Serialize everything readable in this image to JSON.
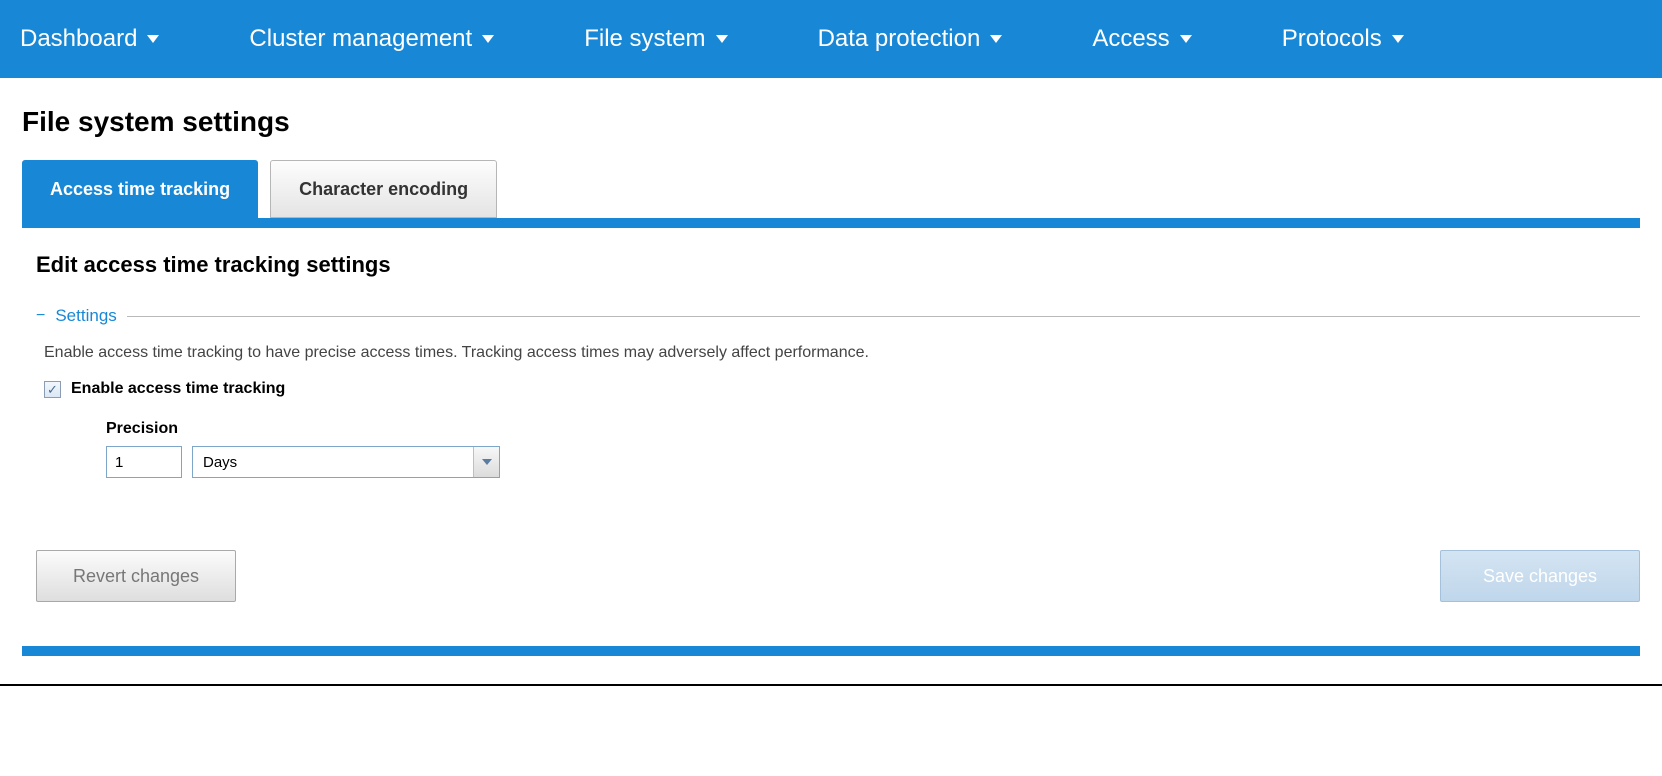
{
  "colors": {
    "brand": "#1888d6",
    "text": "#000000",
    "muted": "#777777",
    "link": "#1888d6",
    "border_input": "#7ea6c9"
  },
  "nav": {
    "items": [
      {
        "label": "Dashboard"
      },
      {
        "label": "Cluster management"
      },
      {
        "label": "File system"
      },
      {
        "label": "Data protection"
      },
      {
        "label": "Access"
      },
      {
        "label": "Protocols"
      }
    ]
  },
  "page": {
    "title": "File system settings"
  },
  "tabs": [
    {
      "label": "Access time tracking",
      "active": true
    },
    {
      "label": "Character encoding",
      "active": false
    }
  ],
  "panel": {
    "heading": "Edit access time tracking settings",
    "fieldset": {
      "toggle_glyph": "−",
      "title": "Settings",
      "description": "Enable access time tracking to have precise access times. Tracking access times may adversely affect performance.",
      "checkbox": {
        "checked": true,
        "label": "Enable access time tracking"
      },
      "precision": {
        "label": "Precision",
        "value": "1",
        "unit_selected": "Days"
      }
    }
  },
  "buttons": {
    "revert": "Revert changes",
    "save": "Save changes"
  }
}
